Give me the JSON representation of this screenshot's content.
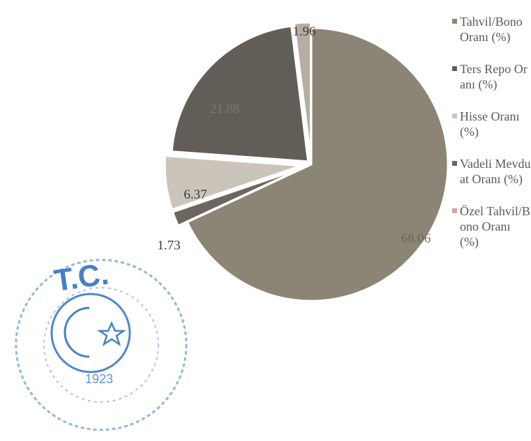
{
  "chart_data": {
    "type": "pie",
    "slices": [
      {
        "name": "Tahvil/Bono Oranı (%)",
        "value": 68.06,
        "label": "68.06",
        "color": "#8c8474",
        "label_color": "#6e6659"
      },
      {
        "name": "Vadeli Mevduat Oranı (%)",
        "value": 1.73,
        "label": "1.73",
        "color": "#6b665e",
        "label_color": "#3a3a3a"
      },
      {
        "name": "Hisse Oranı (%)",
        "value": 6.37,
        "label": "6.37",
        "color": "#cbc4ba",
        "label_color": "#3a3a3a"
      },
      {
        "name": "Ters Repo Oranı (%)",
        "value": 21.88,
        "label": "21.88",
        "color": "#625d57",
        "label_color": "#7e776d"
      },
      {
        "name": "Özel Tahvil/Bono Oranı (%)",
        "value": 1.96,
        "label": "1.96",
        "color": "#b6aca1",
        "label_color": "#3a3a3a"
      }
    ],
    "legend": [
      {
        "text": "Tahvil/Bono Oranı (%)",
        "color": "#8c8474"
      },
      {
        "text": "Ters Repo Oranı (%)",
        "color": "#625d57"
      },
      {
        "text": "Hisse Oranı (%)",
        "color": "#cbc4ba"
      },
      {
        "text": "Vadeli Mevduat Oranı (%)",
        "color": "#6b665e"
      },
      {
        "text": "Özel Tahvil/Bono Oranı (%)",
        "color": "#c9a9a0"
      }
    ],
    "legend_position": "right"
  },
  "stamp": {
    "initials": "T.C.",
    "year": "1923"
  }
}
